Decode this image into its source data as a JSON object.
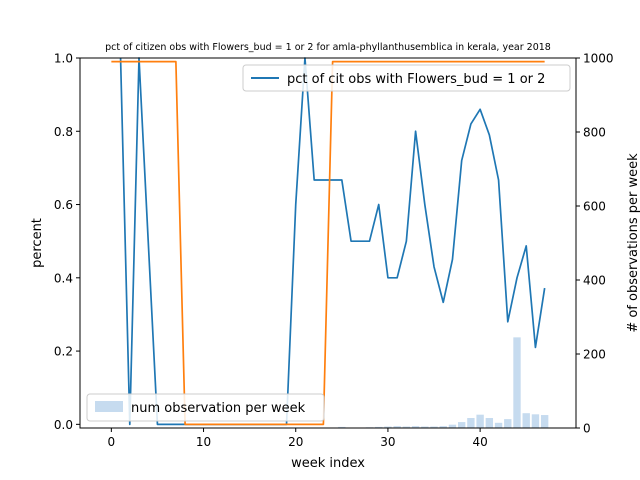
{
  "chart_data": {
    "type": "line",
    "title": "pct of citizen obs with Flowers_bud = 1 or 2 for amla-phyllanthusemblica in kerala, year 2018",
    "xlabel": "week index",
    "ylabel_left": "percent",
    "ylabel_right": "# of observations per week",
    "xlim": [
      -3.4,
      50.4
    ],
    "ylim_left": [
      -0.01,
      1.0
    ],
    "ylim_right": [
      0,
      1000
    ],
    "x_ticks": [
      0,
      10,
      20,
      30,
      40
    ],
    "y_ticks_left": [
      0.0,
      0.2,
      0.4,
      0.6,
      0.8,
      1.0
    ],
    "y_ticks_left_labels": [
      "0.0",
      "0.2",
      "0.4",
      "0.6",
      "0.8",
      "1.0"
    ],
    "y_ticks_right": [
      0,
      200,
      400,
      600,
      800,
      1000
    ],
    "series": [
      {
        "name": "pct of cit obs with Flowers_bud = 1 or 2",
        "axis": "left",
        "color": "#1f77b4",
        "x": [
          1,
          2,
          3,
          4,
          5,
          6,
          7,
          8,
          9,
          10,
          11,
          12,
          13,
          14,
          15,
          16,
          17,
          18,
          19,
          20,
          21,
          22,
          23,
          24,
          25,
          26,
          27,
          28,
          29,
          30,
          31,
          32,
          33,
          34,
          35,
          36,
          37,
          38,
          39,
          40,
          41,
          42,
          43,
          44,
          45,
          46,
          47
        ],
        "values": [
          1.0,
          0.0,
          1.0,
          0.5,
          0.0,
          0.0,
          0.0,
          0.0,
          0.0,
          0.0,
          0.0,
          0.0,
          0.0,
          0.0,
          0.0,
          0.0,
          0.0,
          0.0,
          0.0,
          0.6,
          1.0,
          0.667,
          0.667,
          0.667,
          0.667,
          0.5,
          0.5,
          0.5,
          0.6,
          0.4,
          0.4,
          0.5,
          0.8,
          0.6,
          0.43,
          0.333,
          0.45,
          0.72,
          0.82,
          0.86,
          0.79,
          0.667,
          0.28,
          0.4,
          0.487,
          0.21,
          0.372
        ]
      },
      {
        "name": "",
        "axis": "left",
        "color": "#ff7f0e",
        "x": [
          0,
          7,
          8,
          23,
          24,
          47
        ],
        "values": [
          0.99,
          0.99,
          0.0,
          0.0,
          0.99,
          0.99
        ]
      },
      {
        "name": "num observation per week",
        "axis": "right",
        "type": "bar",
        "color": "#c6dbef",
        "x": [
          25,
          28,
          29,
          30,
          31,
          32,
          33,
          34,
          35,
          36,
          37,
          38,
          39,
          40,
          41,
          42,
          43,
          44,
          45,
          46,
          47
        ],
        "values": [
          3,
          2,
          3,
          4,
          5,
          4,
          5,
          4,
          4,
          5,
          9,
          16,
          27,
          36,
          27,
          14,
          24,
          245,
          40,
          37,
          35
        ]
      }
    ],
    "legend": {
      "line_label": "pct of cit obs with Flowers_bud = 1 or 2",
      "bar_label": "num observation per week",
      "line_position": "top-right",
      "bar_position": "bottom-left"
    },
    "grid": false
  }
}
